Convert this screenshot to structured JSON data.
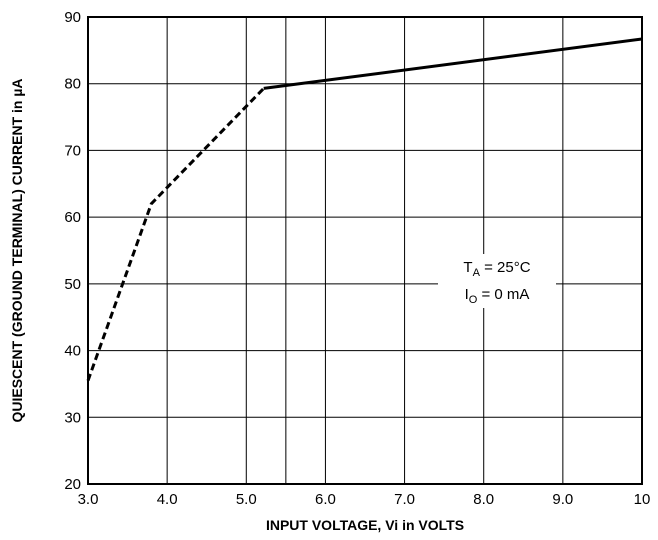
{
  "chart_data": {
    "type": "line",
    "xlabel": "INPUT VOLTAGE, Vi in VOLTS",
    "ylabel": "QUIESCENT (GROUND TERMINAL) CURRENT in µA",
    "xlim": [
      3,
      10
    ],
    "ylim": [
      20,
      90
    ],
    "x_ticks": [
      3,
      4,
      5,
      6,
      7,
      8,
      9,
      10
    ],
    "x_tick_labels": [
      "3.0",
      "4.0",
      "5.0",
      "6.0",
      "7.0",
      "8.0",
      "9.0",
      "10"
    ],
    "y_ticks": [
      20,
      30,
      40,
      50,
      60,
      70,
      80,
      90
    ],
    "y_tick_labels": [
      "20",
      "30",
      "40",
      "50",
      "60",
      "70",
      "80",
      "90"
    ],
    "x_minor_gridline_at": 5.5,
    "grid": true,
    "series": [
      {
        "style": "dashed",
        "x": [
          3.0,
          3.8,
          5.22
        ],
        "y": [
          35.5,
          62,
          79.3
        ]
      },
      {
        "style": "solid",
        "x": [
          5.22,
          10.0
        ],
        "y": [
          79.3,
          86.7
        ]
      }
    ],
    "annotation": {
      "line1_main": "T",
      "line1_sub": "A",
      "line1_rest": " = 25°C",
      "line2_main": "I",
      "line2_sub": "O",
      "line2_rest": " = 0 mA"
    }
  }
}
